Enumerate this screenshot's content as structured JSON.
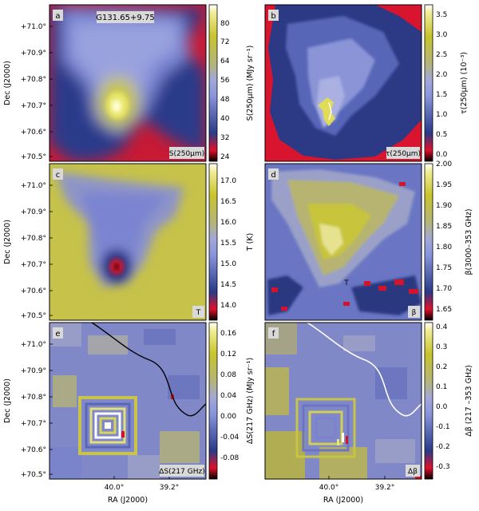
{
  "chart_data": [
    {
      "type": "heatmap",
      "panel_letter": "a",
      "annotation": "G131.65+9.75",
      "map_label": "S(250μm)",
      "colorbar_label": "S(250μm) (MJy sr⁻¹)",
      "colorbar_ticks": [
        "80",
        "72",
        "64",
        "56",
        "48",
        "40",
        "32",
        "24"
      ],
      "clim": [
        22,
        86
      ],
      "colormap": "ds9-like red-blue-yellow",
      "xlabel": "",
      "ylabel": "Dec (J2000)",
      "x_ticks": [],
      "y_ticks": [
        "+71.0°",
        "+70.9°",
        "+70.8°",
        "+70.7°",
        "+70.6°",
        "+70.5°"
      ]
    },
    {
      "type": "heatmap",
      "panel_letter": "b",
      "map_label": "τ(250μm)",
      "colorbar_label": "τ(250μm) (10⁻³)",
      "colorbar_ticks": [
        "3.5",
        "3.0",
        "2.5",
        "2.0",
        "1.5",
        "1.0",
        "0.5",
        "0.0"
      ],
      "clim": [
        -0.2,
        3.7
      ],
      "colormap": "ds9-like red-blue-yellow",
      "xlabel": "",
      "ylabel": "",
      "x_ticks": [],
      "y_ticks": []
    },
    {
      "type": "heatmap",
      "panel_letter": "c",
      "map_label": "T",
      "colorbar_label": "T (K)",
      "colorbar_ticks": [
        "17.0",
        "16.5",
        "16.0",
        "15.5",
        "15.0",
        "14.5",
        "14.0"
      ],
      "clim": [
        13.6,
        17.4
      ],
      "colormap": "ds9-like red-blue-yellow",
      "xlabel": "",
      "ylabel": "Dec (J2000)",
      "x_ticks": [],
      "y_ticks": [
        "+71.0°",
        "+70.9°",
        "+70.8°",
        "+70.7°",
        "+70.6°",
        "+70.5°"
      ]
    },
    {
      "type": "heatmap",
      "panel_letter": "d",
      "map_label": "β",
      "colorbar_label": "β(3000–353 GHz)",
      "colorbar_ticks": [
        "2.00",
        "1.95",
        "1.90",
        "1.85",
        "1.80",
        "1.75",
        "1.70",
        "1.65"
      ],
      "clim": [
        1.625,
        2.0
      ],
      "colormap": "ds9-like red-blue-yellow",
      "annotation": "T",
      "xlabel": "",
      "ylabel": "",
      "x_ticks": [],
      "y_ticks": []
    },
    {
      "type": "heatmap",
      "panel_letter": "e",
      "map_label": "ΔS(217 GHz)",
      "colorbar_label": "ΔS(217 GHz) (MJy sr⁻¹)",
      "colorbar_ticks": [
        "0.16",
        "0.12",
        "0.08",
        "0.04",
        "0.00",
        "-0.04",
        "-0.08"
      ],
      "clim": [
        -0.11,
        0.18
      ],
      "colormap": "ds9-like red-blue-yellow",
      "contour_color": "#000000",
      "xlabel": "RA (J2000)",
      "ylabel": "Dec (J2000)",
      "x_ticks": [
        "40.0°",
        "39.2°"
      ],
      "y_ticks": [
        "+71.0°",
        "+70.9°",
        "+70.8°",
        "+70.7°",
        "+70.6°",
        "+70.5°"
      ]
    },
    {
      "type": "heatmap",
      "panel_letter": "f",
      "map_label": "Δβ",
      "colorbar_label": "Δβ (217 –353 GHz)",
      "colorbar_ticks": [
        "0.4",
        "0.3",
        "0.2",
        "0.1",
        "0.0",
        "-0.1",
        "-0.2",
        "-0.3"
      ],
      "clim": [
        -0.37,
        0.42
      ],
      "colormap": "ds9-like red-blue-yellow",
      "contour_color": "#ffffff",
      "xlabel": "RA (J2000)",
      "ylabel": "",
      "x_ticks": [
        "40.0°",
        "39.2°"
      ],
      "y_ticks": []
    }
  ]
}
